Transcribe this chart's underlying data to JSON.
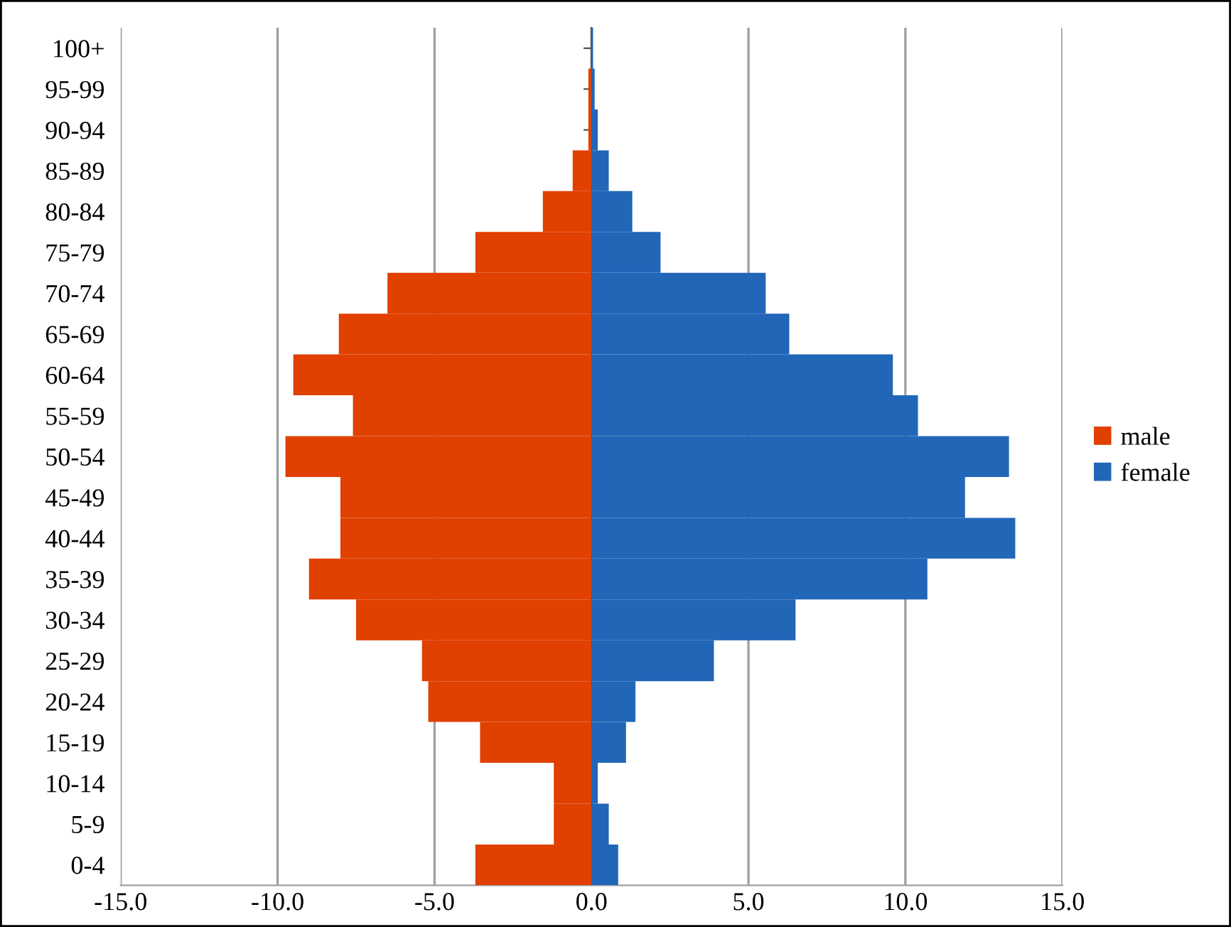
{
  "chart_data": {
    "type": "bar",
    "orientation": "horizontal",
    "stacked": true,
    "categories": [
      "100+",
      "95-99",
      "90-94",
      "85-89",
      "80-84",
      "75-79",
      "70-74",
      "65-69",
      "60-64",
      "55-59",
      "50-54",
      "45-49",
      "40-44",
      "35-39",
      "30-34",
      "25-29",
      "20-24",
      "15-19",
      "10-14",
      "5-9",
      "0-4"
    ],
    "series": [
      {
        "name": "male",
        "color": "#e04000",
        "values": [
          0.0,
          -0.1,
          -0.1,
          -0.6,
          -1.55,
          -3.7,
          -6.5,
          -8.05,
          -9.5,
          -7.6,
          -9.75,
          -8.0,
          -8.0,
          -9.0,
          -7.5,
          -5.4,
          -5.2,
          -3.55,
          -1.2,
          -1.2,
          -3.7
        ]
      },
      {
        "name": "female",
        "color": "#2266b8",
        "values": [
          0.05,
          0.1,
          0.2,
          0.55,
          1.3,
          2.2,
          5.55,
          6.3,
          9.6,
          10.4,
          13.3,
          11.9,
          13.5,
          10.7,
          6.5,
          3.9,
          1.4,
          1.1,
          0.2,
          0.55,
          0.85
        ]
      }
    ],
    "xlim": [
      -15,
      15
    ],
    "xticks": [
      {
        "value": -15,
        "label": "-15.0"
      },
      {
        "value": -10,
        "label": "-10.0"
      },
      {
        "value": -5,
        "label": "-5.0"
      },
      {
        "value": 0,
        "label": "0.0"
      },
      {
        "value": 5,
        "label": "5.0"
      },
      {
        "value": 10,
        "label": "10.0"
      },
      {
        "value": 15,
        "label": "15.0"
      }
    ],
    "grid": "x",
    "legend": "right"
  }
}
